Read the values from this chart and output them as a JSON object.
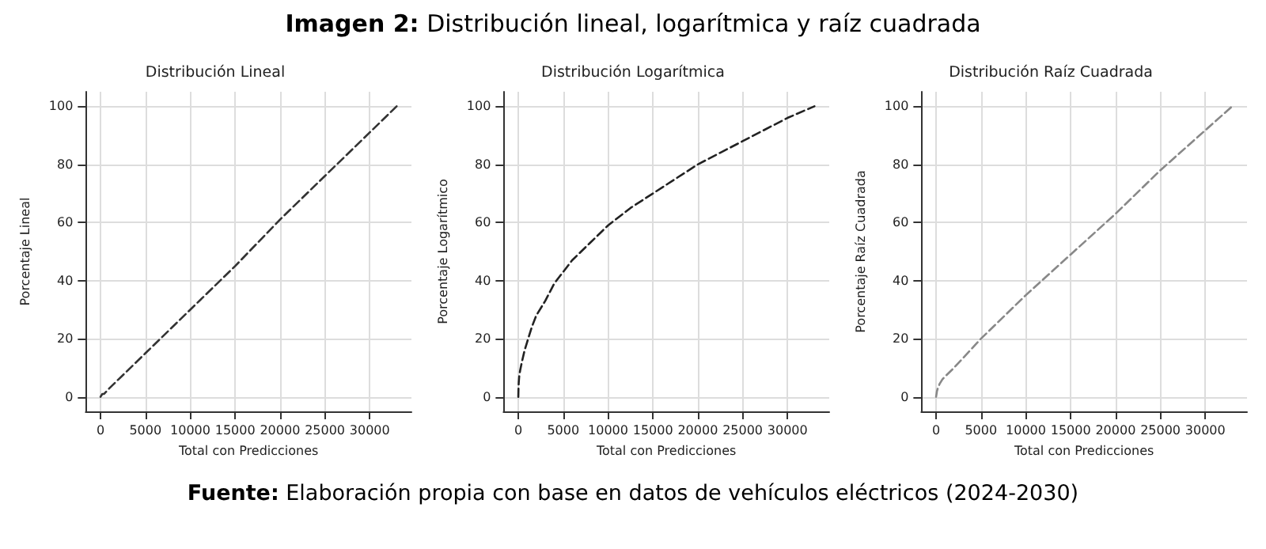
{
  "chart_data": [
    {
      "type": "line",
      "title": "Distribución Lineal",
      "xlabel": "Total con Predicciones",
      "ylabel": "Porcentaje Lineal",
      "annotations": [
        "Imagen 2: Distribución lineal, logarítmica y raíz cuadrada",
        "Fuente: Elaboración propia con base en datos de vehículos eléctricos (2024-2030)"
      ],
      "x": [
        0,
        50,
        100,
        200,
        400,
        700,
        1000,
        2000,
        5000,
        10000,
        15000,
        20000,
        25000,
        30000,
        33000
      ],
      "series": [
        {
          "color": "#333333",
          "values": [
            0,
            0,
            0,
            1,
            1,
            2,
            3,
            6,
            15,
            30,
            45,
            61,
            76,
            91,
            100
          ]
        }
      ],
      "xlim": [
        -1650,
        34650
      ],
      "ylim": [
        -5,
        105
      ],
      "xticks": [
        0,
        5000,
        10000,
        15000,
        20000,
        25000,
        30000
      ],
      "yticks": [
        0,
        20,
        40,
        60,
        80,
        100
      ],
      "grid": true,
      "marker": "none",
      "line_style": "dashed"
    },
    {
      "type": "line",
      "title": "Distribución Logarítmica",
      "xlabel": "Total con Predicciones",
      "ylabel": "Porcentaje Logarítmico",
      "x": [
        0,
        20,
        50,
        100,
        200,
        400,
        700,
        1000,
        1500,
        2000,
        3000,
        4000,
        5000,
        6000,
        8000,
        10000,
        12500,
        15000,
        17500,
        20000,
        22500,
        25000,
        27500,
        30000,
        33000
      ],
      "series": [
        {
          "color": "#222222",
          "values": [
            0,
            3,
            5,
            7,
            9,
            12,
            16,
            19,
            24,
            28,
            33,
            39,
            43,
            47,
            53,
            59,
            65,
            70,
            75,
            80,
            84,
            88,
            92,
            96,
            100
          ]
        }
      ],
      "xlim": [
        -1650,
        34650
      ],
      "ylim": [
        -5,
        105
      ],
      "xticks": [
        0,
        5000,
        10000,
        15000,
        20000,
        25000,
        30000
      ],
      "yticks": [
        0,
        20,
        40,
        60,
        80,
        100
      ],
      "grid": true,
      "marker": "none",
      "line_style": "dashed"
    },
    {
      "type": "line",
      "title": "Distribución Raíz Cuadrada",
      "xlabel": "Total con Predicciones",
      "ylabel": "Porcentaje Raíz Cuadrada",
      "x": [
        0,
        50,
        100,
        200,
        400,
        700,
        1000,
        2000,
        5000,
        10000,
        15000,
        20000,
        25000,
        33000
      ],
      "series": [
        {
          "color": "#888888",
          "values": [
            0,
            1,
            2,
            3,
            4.5,
            6,
            7,
            10,
            20,
            35,
            49,
            63,
            78,
            100
          ]
        }
      ],
      "xlim": [
        -1650,
        34650
      ],
      "ylim": [
        -5,
        105
      ],
      "xticks": [
        0,
        5000,
        10000,
        15000,
        20000,
        25000,
        30000
      ],
      "yticks": [
        0,
        20,
        40,
        60,
        80,
        100
      ],
      "grid": true,
      "marker": "none",
      "line_style": "dashed"
    }
  ]
}
